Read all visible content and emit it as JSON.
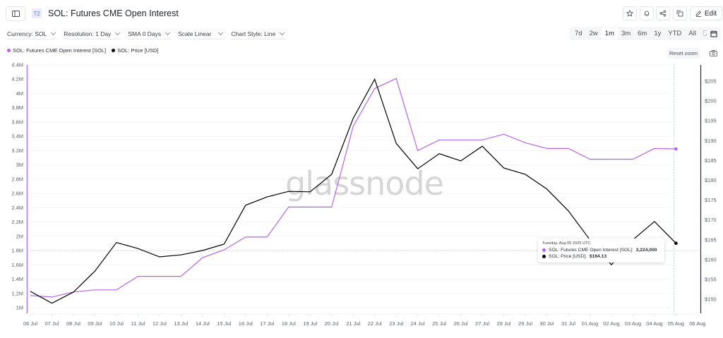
{
  "header": {
    "tier_badge": "T2",
    "title": "SOL: Futures CME Open Interest",
    "actions": [
      {
        "name": "star-icon",
        "label": "Favorite"
      },
      {
        "name": "bell-icon",
        "label": "Alert"
      },
      {
        "name": "share-icon",
        "label": "Share"
      },
      {
        "name": "copy-icon",
        "label": "Copy"
      }
    ],
    "edit_label": "Edit"
  },
  "filters": [
    {
      "label": "Currency: SOL"
    },
    {
      "label": "Resolution: 1 Day"
    },
    {
      "label": "SMA 0 Days"
    },
    {
      "label": "Scale Linear"
    },
    {
      "label": "Chart Style: Line"
    }
  ],
  "range": {
    "options": [
      "7d",
      "2w",
      "1m",
      "3m",
      "6m",
      "1y",
      "YTD",
      "All"
    ],
    "selected": "1m"
  },
  "reset_zoom_label": "Reset zoom",
  "legend": [
    {
      "label": "SOL: Futures CME Open Interest [SOL]",
      "color": "#b565e8"
    },
    {
      "label": "SOL: Price [USD]",
      "color": "#000000"
    }
  ],
  "watermark": "glassnode",
  "tooltip": {
    "date": "Tuesday, Aug 05 2025 UTC",
    "rows": [
      {
        "label": "SOL: Futures CME Open Interest [SOL]:",
        "value": "3,224,000",
        "color": "#b565e8"
      },
      {
        "label": "SOL: Price [USD]:",
        "value": "$164.13",
        "color": "#000000"
      }
    ]
  },
  "colors": {
    "open_interest": "#b565e8",
    "price": "#000000",
    "grid": "#f0f1f3",
    "axis_text": "#5d626a"
  },
  "chart_data": {
    "type": "line",
    "title": "SOL: Futures CME Open Interest",
    "x": [
      "06 Jul",
      "07 Jul",
      "08 Jul",
      "09 Jul",
      "10 Jul",
      "11 Jul",
      "12 Jul",
      "13 Jul",
      "14 Jul",
      "15 Jul",
      "16 Jul",
      "17 Jul",
      "18 Jul",
      "19 Jul",
      "20 Jul",
      "21 Jul",
      "22 Jul",
      "23 Jul",
      "24 Jul",
      "25 Jul",
      "26 Jul",
      "27 Jul",
      "28 Jul",
      "29 Jul",
      "30 Jul",
      "31 Jul",
      "01 Aug",
      "02 Aug",
      "03 Aug",
      "04 Aug",
      "05 Aug"
    ],
    "x_tick_labels": [
      "06 Jul",
      "07 Jul",
      "08 Jul",
      "09 Jul",
      "10 Jul",
      "11 Jul",
      "12 Jul",
      "13 Jul",
      "14 Jul",
      "15 Jul",
      "16 Jul",
      "17 Jul",
      "18 Jul",
      "19 Jul",
      "20 Jul",
      "21 Jul",
      "22 Jul",
      "23 Jul",
      "24 Jul",
      "25 Jul",
      "26 Jul",
      "27 Jul",
      "28 Jul",
      "29 Jul",
      "30 Jul",
      "31 Jul",
      "01 Aug",
      "02 Aug",
      "03 Aug",
      "04 Aug",
      "05 Aug",
      "06 Aug"
    ],
    "series": [
      {
        "name": "SOL: Futures CME Open Interest [SOL]",
        "axis": "left",
        "color": "#b565e8",
        "values": [
          1170000,
          1150000,
          1220000,
          1250000,
          1250000,
          1440000,
          1440000,
          1440000,
          1700000,
          1810000,
          1990000,
          1990000,
          2410000,
          2410000,
          2410000,
          3540000,
          4070000,
          4210000,
          3200000,
          3350000,
          3350000,
          3350000,
          3430000,
          3310000,
          3230000,
          3230000,
          3080000,
          3080000,
          3080000,
          3230000,
          3224000
        ]
      },
      {
        "name": "SOL: Price [USD]",
        "axis": "right",
        "color": "#000000",
        "values": [
          152.0,
          149.0,
          151.8,
          157.1,
          164.3,
          162.8,
          160.7,
          161.2,
          162.3,
          163.9,
          173.7,
          175.8,
          177.2,
          177.1,
          181.5,
          195.6,
          205.5,
          189.3,
          182.9,
          186.7,
          184.9,
          188.6,
          183.1,
          181.5,
          177.8,
          172.3,
          165.0,
          158.7,
          165.0,
          169.6,
          164.13
        ]
      }
    ],
    "y_left": {
      "ticks": [
        "1M",
        "1.2M",
        "1.4M",
        "1.6M",
        "1.8M",
        "2M",
        "2.2M",
        "2.4M",
        "2.6M",
        "2.8M",
        "3M",
        "3.2M",
        "3.4M",
        "3.6M",
        "3.8M",
        "4M",
        "4.2M",
        "4.4M"
      ],
      "range": [
        1000000,
        4400000
      ]
    },
    "y_right": {
      "ticks": [
        "$150",
        "$155",
        "$160",
        "$165",
        "$170",
        "$175",
        "$180",
        "$185",
        "$190",
        "$195",
        "$200",
        "$205"
      ],
      "range": [
        148,
        207
      ]
    },
    "xlabel": "",
    "ylabel": "",
    "grid": true,
    "legend_position": "top-left",
    "crosshair": {
      "x": "05 Aug",
      "y_left": "1.8M"
    }
  }
}
